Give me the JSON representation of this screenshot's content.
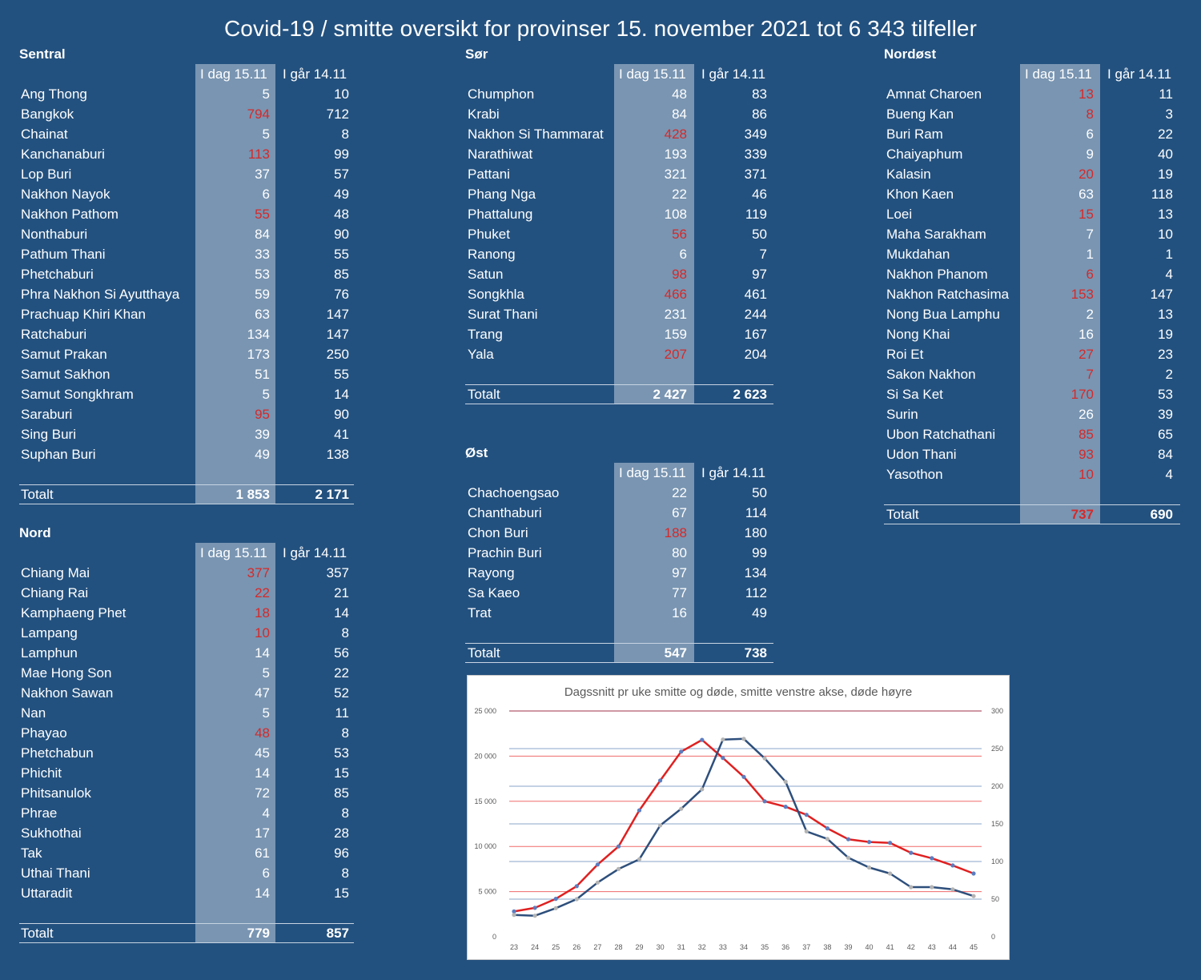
{
  "title": "Covid-19 / smitte oversikt for provinser 15. november 2021 tot 6 343 tilfeller",
  "col_today": "I dag 15.11",
  "col_yesterday": "I går 14.11",
  "total_label": "Totalt",
  "colors": {
    "background": "#23517f",
    "red_value": "#d42a2a",
    "band": "#8fa2bb",
    "cases_line": "#e02020",
    "deaths_line": "#2e4f7c"
  },
  "regions": {
    "sentral": {
      "name": "Sentral",
      "rows": [
        {
          "p": "Ang Thong",
          "t": "5",
          "y": "10",
          "red": false
        },
        {
          "p": "Bangkok",
          "t": "794",
          "y": "712",
          "red": true
        },
        {
          "p": "Chainat",
          "t": "5",
          "y": "8",
          "red": false
        },
        {
          "p": "Kanchanaburi",
          "t": "113",
          "y": "99",
          "red": true
        },
        {
          "p": "Lop Buri",
          "t": "37",
          "y": "57",
          "red": false
        },
        {
          "p": "Nakhon Nayok",
          "t": "6",
          "y": "49",
          "red": false
        },
        {
          "p": "Nakhon Pathom",
          "t": "55",
          "y": "48",
          "red": true
        },
        {
          "p": "Nonthaburi",
          "t": "84",
          "y": "90",
          "red": false
        },
        {
          "p": "Pathum Thani",
          "t": "33",
          "y": "55",
          "red": false
        },
        {
          "p": "Phetchaburi",
          "t": "53",
          "y": "85",
          "red": false
        },
        {
          "p": "Phra Nakhon Si Ayutthaya",
          "t": "59",
          "y": "76",
          "red": false
        },
        {
          "p": "Prachuap Khiri Khan",
          "t": "63",
          "y": "147",
          "red": false
        },
        {
          "p": "Ratchaburi",
          "t": "134",
          "y": "147",
          "red": false
        },
        {
          "p": "Samut Prakan",
          "t": "173",
          "y": "250",
          "red": false
        },
        {
          "p": "Samut Sakhon",
          "t": "51",
          "y": "55",
          "red": false
        },
        {
          "p": "Samut Songkhram",
          "t": "5",
          "y": "14",
          "red": false
        },
        {
          "p": "Saraburi",
          "t": "95",
          "y": "90",
          "red": true
        },
        {
          "p": "Sing Buri",
          "t": "39",
          "y": "41",
          "red": false
        },
        {
          "p": "Suphan Buri",
          "t": "49",
          "y": "138",
          "red": false
        }
      ],
      "total": {
        "t": "1 853",
        "y": "2 171",
        "red": false
      }
    },
    "nord": {
      "name": "Nord",
      "rows": [
        {
          "p": "Chiang Mai",
          "t": "377",
          "y": "357",
          "red": true
        },
        {
          "p": "Chiang Rai",
          "t": "22",
          "y": "21",
          "red": true
        },
        {
          "p": "Kamphaeng Phet",
          "t": "18",
          "y": "14",
          "red": true
        },
        {
          "p": "Lampang",
          "t": "10",
          "y": "8",
          "red": true
        },
        {
          "p": "Lamphun",
          "t": "14",
          "y": "56",
          "red": false
        },
        {
          "p": "Mae Hong Son",
          "t": "5",
          "y": "22",
          "red": false
        },
        {
          "p": "Nakhon Sawan",
          "t": "47",
          "y": "52",
          "red": false
        },
        {
          "p": "Nan",
          "t": "5",
          "y": "11",
          "red": false
        },
        {
          "p": "Phayao",
          "t": "48",
          "y": "8",
          "red": true
        },
        {
          "p": "Phetchabun",
          "t": "45",
          "y": "53",
          "red": false
        },
        {
          "p": "Phichit",
          "t": "14",
          "y": "15",
          "red": false
        },
        {
          "p": "Phitsanulok",
          "t": "72",
          "y": "85",
          "red": false
        },
        {
          "p": "Phrae",
          "t": "4",
          "y": "8",
          "red": false
        },
        {
          "p": "Sukhothai",
          "t": "17",
          "y": "28",
          "red": false
        },
        {
          "p": "Tak",
          "t": "61",
          "y": "96",
          "red": false
        },
        {
          "p": "Uthai Thani",
          "t": "6",
          "y": "8",
          "red": false
        },
        {
          "p": "Uttaradit",
          "t": "14",
          "y": "15",
          "red": false
        }
      ],
      "total": {
        "t": "779",
        "y": "857",
        "red": false
      }
    },
    "sor": {
      "name": "Sør",
      "rows": [
        {
          "p": "Chumphon",
          "t": "48",
          "y": "83",
          "red": false
        },
        {
          "p": "Krabi",
          "t": "84",
          "y": "86",
          "red": false
        },
        {
          "p": "Nakhon Si Thammarat",
          "t": "428",
          "y": "349",
          "red": true
        },
        {
          "p": "Narathiwat",
          "t": "193",
          "y": "339",
          "red": false
        },
        {
          "p": "Pattani",
          "t": "321",
          "y": "371",
          "red": false
        },
        {
          "p": "Phang Nga",
          "t": "22",
          "y": "46",
          "red": false
        },
        {
          "p": "Phattalung",
          "t": "108",
          "y": "119",
          "red": false
        },
        {
          "p": "Phuket",
          "t": "56",
          "y": "50",
          "red": true
        },
        {
          "p": "Ranong",
          "t": "6",
          "y": "7",
          "red": false
        },
        {
          "p": "Satun",
          "t": "98",
          "y": "97",
          "red": true
        },
        {
          "p": "Songkhla",
          "t": "466",
          "y": "461",
          "red": true
        },
        {
          "p": "Surat Thani",
          "t": "231",
          "y": "244",
          "red": false
        },
        {
          "p": "Trang",
          "t": "159",
          "y": "167",
          "red": false
        },
        {
          "p": "Yala",
          "t": "207",
          "y": "204",
          "red": true
        }
      ],
      "total": {
        "t": "2 427",
        "y": "2 623",
        "red": false
      }
    },
    "ost": {
      "name": "Øst",
      "rows": [
        {
          "p": "Chachoengsao",
          "t": "22",
          "y": "50",
          "red": false
        },
        {
          "p": "Chanthaburi",
          "t": "67",
          "y": "114",
          "red": false
        },
        {
          "p": "Chon Buri",
          "t": "188",
          "y": "180",
          "red": true
        },
        {
          "p": "Prachin Buri",
          "t": "80",
          "y": "99",
          "red": false
        },
        {
          "p": "Rayong",
          "t": "97",
          "y": "134",
          "red": false
        },
        {
          "p": "Sa Kaeo",
          "t": "77",
          "y": "112",
          "red": false
        },
        {
          "p": "Trat",
          "t": "16",
          "y": "49",
          "red": false
        }
      ],
      "total": {
        "t": "547",
        "y": "738",
        "red": false
      }
    },
    "nordost": {
      "name": "Nordøst",
      "rows": [
        {
          "p": "Amnat Charoen",
          "t": "13",
          "y": "11",
          "red": true
        },
        {
          "p": "Bueng Kan",
          "t": "8",
          "y": "3",
          "red": true
        },
        {
          "p": "Buri Ram",
          "t": "6",
          "y": "22",
          "red": false
        },
        {
          "p": "Chaiyaphum",
          "t": "9",
          "y": "40",
          "red": false
        },
        {
          "p": "Kalasin",
          "t": "20",
          "y": "19",
          "red": true
        },
        {
          "p": "Khon Kaen",
          "t": "63",
          "y": "118",
          "red": false
        },
        {
          "p": "Loei",
          "t": "15",
          "y": "13",
          "red": true
        },
        {
          "p": "Maha Sarakham",
          "t": "7",
          "y": "10",
          "red": false
        },
        {
          "p": "Mukdahan",
          "t": "1",
          "y": "1",
          "red": false
        },
        {
          "p": "Nakhon Phanom",
          "t": "6",
          "y": "4",
          "red": true
        },
        {
          "p": "Nakhon Ratchasima",
          "t": "153",
          "y": "147",
          "red": true
        },
        {
          "p": "Nong Bua Lamphu",
          "t": "2",
          "y": "13",
          "red": false
        },
        {
          "p": "Nong Khai",
          "t": "16",
          "y": "19",
          "red": false
        },
        {
          "p": "Roi Et",
          "t": "27",
          "y": "23",
          "red": true
        },
        {
          "p": "Sakon Nakhon",
          "t": "7",
          "y": "2",
          "red": true
        },
        {
          "p": "Si Sa Ket",
          "t": "170",
          "y": "53",
          "red": true
        },
        {
          "p": "Surin",
          "t": "26",
          "y": "39",
          "red": false
        },
        {
          "p": "Ubon Ratchathani",
          "t": "85",
          "y": "65",
          "red": true
        },
        {
          "p": "Udon Thani",
          "t": "93",
          "y": "84",
          "red": true
        },
        {
          "p": "Yasothon",
          "t": "10",
          "y": "4",
          "red": true
        }
      ],
      "total": {
        "t": "737",
        "y": "690",
        "red": true
      }
    }
  },
  "chart_data": {
    "type": "line",
    "title": "Dagssnitt pr uke smitte og døde, smitte venstre akse, døde høyre",
    "x": [
      23,
      24,
      25,
      26,
      27,
      28,
      29,
      30,
      31,
      32,
      33,
      34,
      35,
      36,
      37,
      38,
      39,
      40,
      41,
      42,
      43,
      44,
      45
    ],
    "xlabel": "",
    "ylabel": "",
    "ylim_left": [
      0,
      25000
    ],
    "ylim_right": [
      0,
      300
    ],
    "left_ticks": [
      "0",
      "5 000",
      "10 000",
      "15 000",
      "20 000",
      "25 000"
    ],
    "right_ticks": [
      "0",
      "50",
      "100",
      "150",
      "200",
      "250",
      "300"
    ],
    "grid": true,
    "legend": "none",
    "series": [
      {
        "axis": "left",
        "color": "#e02020",
        "values": [
          2800,
          3200,
          4200,
          5600,
          8000,
          10000,
          14000,
          17300,
          20500,
          21800,
          19800,
          17700,
          15000,
          14400,
          13500,
          12000,
          10800,
          10500,
          10400,
          9300,
          8700,
          7900,
          7000
        ]
      },
      {
        "axis": "right",
        "color": "#2e4f7c",
        "values": [
          29,
          28,
          38,
          50,
          72,
          90,
          103,
          148,
          170,
          196,
          262,
          263,
          237,
          206,
          140,
          130,
          105,
          92,
          84,
          66,
          66,
          63,
          54
        ]
      }
    ]
  }
}
